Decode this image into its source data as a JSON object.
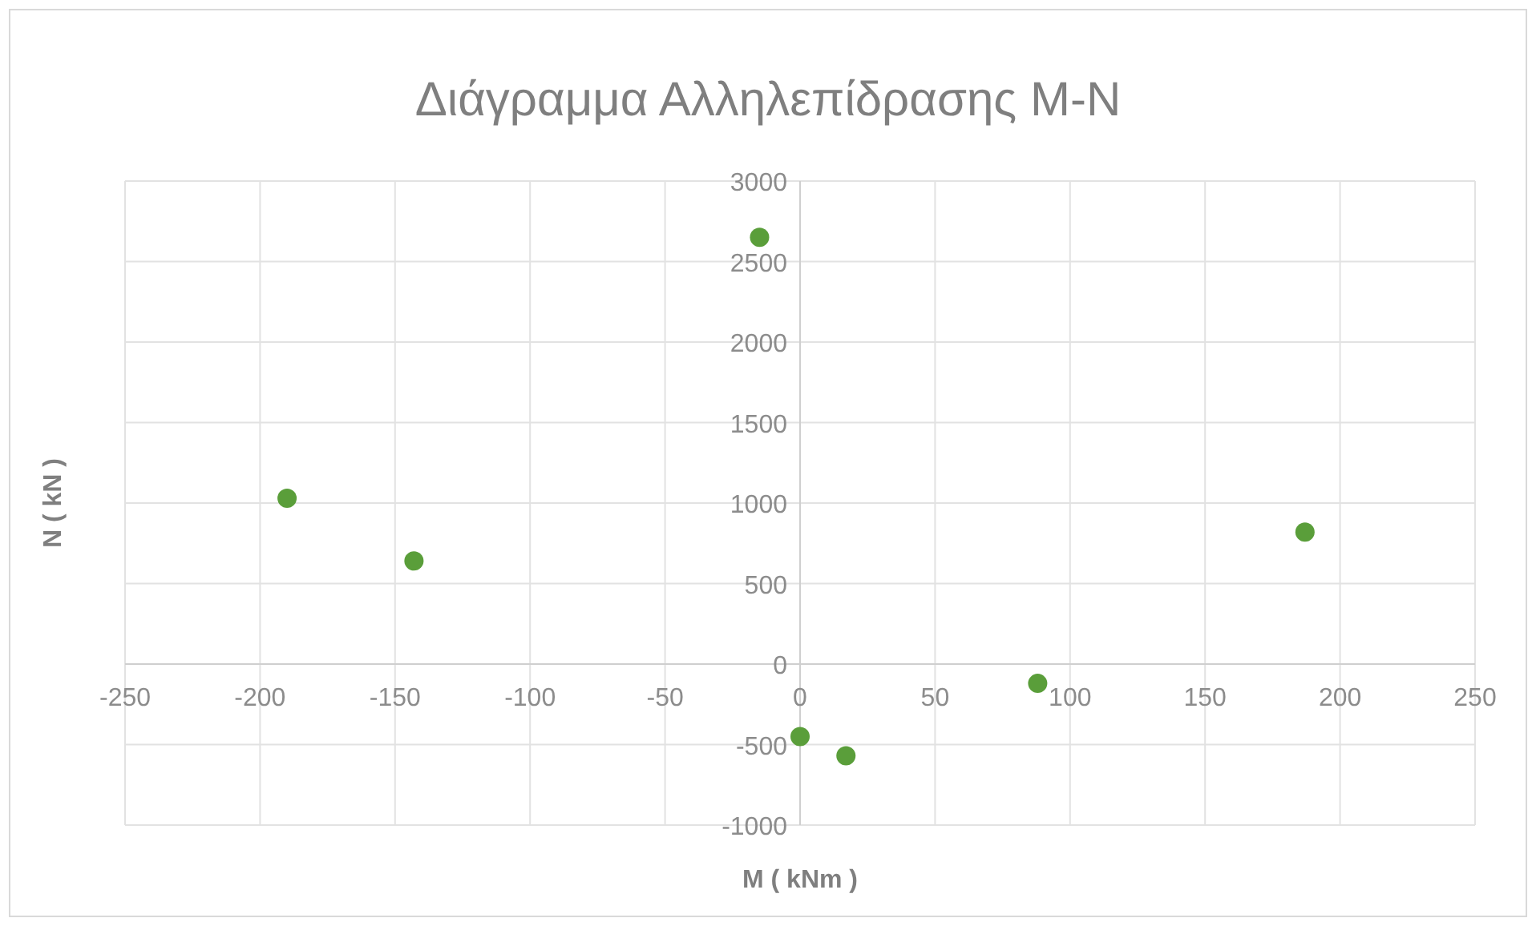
{
  "chart_data": {
    "type": "scatter",
    "title": "Διάγραμμα Αλληλεπίδρασης M-N",
    "xlabel": "M ( kNm )",
    "ylabel": "N ( kN )",
    "x": [
      -190,
      -143,
      -15,
      0,
      17,
      88,
      187
    ],
    "series": [
      {
        "color": "#5a9e3a",
        "values": [
          1030,
          640,
          2650,
          -450,
          -570,
          -120,
          820
        ]
      }
    ],
    "xlim": [
      -250,
      250
    ],
    "xticks": [
      -250,
      -200,
      -150,
      -100,
      -50,
      0,
      50,
      100,
      150,
      200,
      250
    ],
    "ylim": [
      -1000,
      3000
    ],
    "yticks": [
      -1000,
      -500,
      0,
      500,
      1000,
      1500,
      2000,
      2500,
      3000
    ],
    "grid": true,
    "marker": "circle"
  }
}
